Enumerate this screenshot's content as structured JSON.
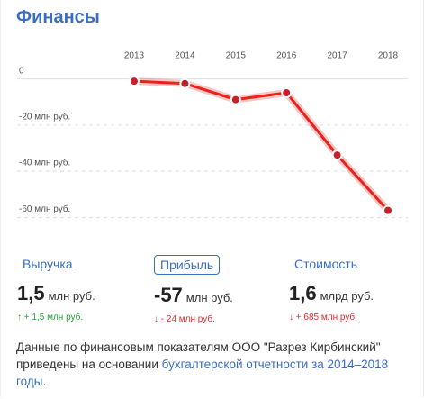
{
  "header": {
    "title": "Финансы"
  },
  "chart_data": {
    "type": "line",
    "categories": [
      "2013",
      "2014",
      "2015",
      "2016",
      "2017",
      "2018"
    ],
    "values": [
      -1,
      -2,
      -9,
      -6,
      -33,
      -57
    ],
    "color": "#e8231c",
    "ylim": [
      -63,
      10
    ],
    "yticks": [
      0,
      {
        "value": -20,
        "label": "-20 млн руб."
      },
      {
        "value": -40,
        "label": "-40 млн руб."
      },
      {
        "value": -60,
        "label": "-60 млн руб."
      }
    ],
    "grid": true
  },
  "stats": [
    {
      "label": "Выручка",
      "value": "1,5",
      "unit": "млн руб.",
      "change": "↑ + 1,5 млн руб.",
      "trend": "up"
    },
    {
      "label": "Прибыль",
      "value": "-57",
      "unit": "млн руб.",
      "change": "↓ - 24 млн руб.",
      "trend": "down"
    },
    {
      "label": "Стоимость",
      "value": "1,6",
      "unit": "млрд руб.",
      "change": "↓ + 685 млн руб.",
      "trend": "down"
    }
  ],
  "footer": {
    "text": "Данные по финансовым показателям ООО \"Разрез Кирбинский\" приведены на основании ",
    "link": "бухгалтерской отчетности за 2014–2018 годы",
    "end": "."
  }
}
